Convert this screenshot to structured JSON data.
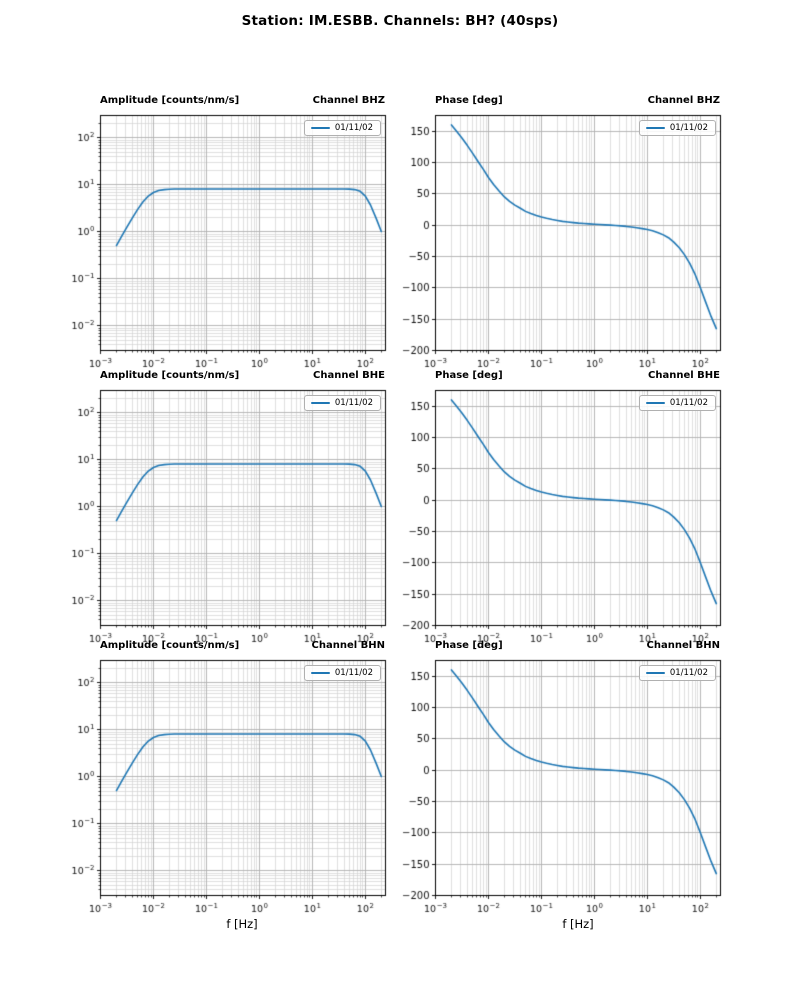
{
  "chart_data": {
    "type": "line",
    "title": "Station: IM.ESBB. Channels: BH? (40sps)",
    "xlabel": "f [Hz]",
    "xscale": "log",
    "xlim": [
      0.001,
      240
    ],
    "xtick_exponents": [
      -3,
      -2,
      -1,
      0,
      1,
      2
    ],
    "grid": "major+minor, both axes, gray",
    "legend": {
      "label": "01/11/02",
      "position": "upper right",
      "line_color": "#1f77b4"
    },
    "channels": [
      "BHZ",
      "BHE",
      "BHN"
    ],
    "channel_titles": [
      "Channel BHZ",
      "Channel BHE",
      "Channel BHN"
    ],
    "layout": "3 rows (channels BHZ/BHE/BHN) x 2 cols (amplitude log-log, phase semilog-x); identical response curve in all rows",
    "x_hz": [
      0.002,
      0.0025,
      0.00315,
      0.004,
      0.005,
      0.0063,
      0.008,
      0.01,
      0.0125,
      0.016,
      0.02,
      0.025,
      0.0315,
      0.04,
      0.05,
      0.063,
      0.08,
      0.1,
      0.125,
      0.16,
      0.2,
      0.25,
      0.315,
      0.4,
      0.5,
      0.63,
      0.8,
      1,
      1.25,
      1.6,
      2,
      2.5,
      3.15,
      4,
      5,
      6.3,
      8,
      10,
      12.5,
      16,
      20,
      25,
      31.5,
      40,
      50,
      63,
      80,
      100,
      125,
      160,
      200
    ],
    "amplitude": {
      "ylabel_title": "Amplitude [counts/nm/s]",
      "yscale": "log",
      "ylim": [
        0.003,
        300
      ],
      "ytick_exponents": [
        -2,
        -1,
        0,
        1,
        2
      ],
      "plateau_value": 8.2,
      "values": [
        0.51,
        0.8,
        1.26,
        1.99,
        2.98,
        4.32,
        5.8,
        6.91,
        7.59,
        7.95,
        8.1,
        8.16,
        8.18,
        8.19,
        8.2,
        8.2,
        8.2,
        8.2,
        8.2,
        8.2,
        8.2,
        8.2,
        8.2,
        8.2,
        8.2,
        8.2,
        8.2,
        8.2,
        8.2,
        8.2,
        8.2,
        8.2,
        8.2,
        8.2,
        8.2,
        8.2,
        8.2,
        8.2,
        8.2,
        8.2,
        8.2,
        8.2,
        8.19,
        8.18,
        8.14,
        7.95,
        7.3,
        5.8,
        3.74,
        1.94,
        1.02
      ]
    },
    "phase": {
      "ylabel_title": "Phase [deg]",
      "yscale": "linear",
      "ylim": [
        -200,
        175
      ],
      "yticks": [
        -200,
        -150,
        -100,
        -50,
        0,
        50,
        100,
        150
      ],
      "values": [
        160,
        150,
        139,
        127,
        115,
        102,
        89,
        76,
        65,
        54,
        45,
        38,
        32,
        27,
        22,
        18.5,
        15.5,
        13,
        11,
        9,
        7.5,
        6,
        5,
        4,
        3.2,
        2.6,
        2,
        1.5,
        1,
        0.5,
        0,
        -0.5,
        -1.2,
        -2,
        -3,
        -4.2,
        -5.5,
        -7,
        -9,
        -12,
        -15.5,
        -20,
        -27,
        -36,
        -47,
        -61,
        -79,
        -100,
        -122,
        -146,
        -165
      ]
    }
  }
}
